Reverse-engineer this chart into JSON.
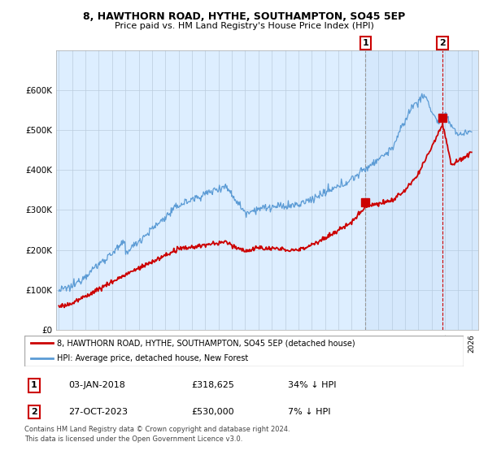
{
  "title": "8, HAWTHORN ROAD, HYTHE, SOUTHAMPTON, SO45 5EP",
  "subtitle": "Price paid vs. HM Land Registry's House Price Index (HPI)",
  "legend_label1": "8, HAWTHORN ROAD, HYTHE, SOUTHAMPTON, SO45 5EP (detached house)",
  "legend_label2": "HPI: Average price, detached house, New Forest",
  "transaction1_date": "03-JAN-2018",
  "transaction1_price": "£318,625",
  "transaction1_hpi": "34% ↓ HPI",
  "transaction2_date": "27-OCT-2023",
  "transaction2_price": "£530,000",
  "transaction2_hpi": "7% ↓ HPI",
  "footnote1": "Contains HM Land Registry data © Crown copyright and database right 2024.",
  "footnote2": "This data is licensed under the Open Government Licence v3.0.",
  "hpi_color": "#5b9bd5",
  "price_color": "#cc0000",
  "dashed_color": "#cc0000",
  "chart_bg": "#ddeeff",
  "grid_color": "#bbccdd",
  "ylim": [
    0,
    700000
  ],
  "yticks": [
    0,
    100000,
    200000,
    300000,
    400000,
    500000,
    600000
  ],
  "ytick_labels": [
    "£0",
    "£100K",
    "£200K",
    "£300K",
    "£400K",
    "£500K",
    "£600K"
  ],
  "transaction1_year": 2018.02,
  "transaction2_year": 2023.82,
  "t1_price_val": 318625,
  "t2_price_val": 530000
}
